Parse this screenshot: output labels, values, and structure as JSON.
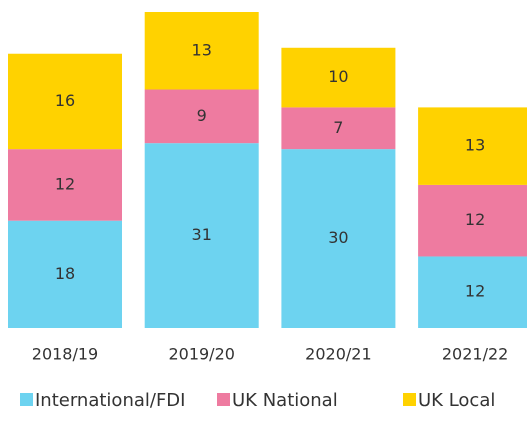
{
  "chart_data": {
    "type": "stacked_bar",
    "categories": [
      "2018/19",
      "2019/20",
      "2020/21",
      "2021/22"
    ],
    "series": [
      {
        "name": "International/FDI",
        "color": "#6dd3f0",
        "values": [
          18,
          31,
          30,
          12
        ]
      },
      {
        "name": "UK National",
        "color": "#ee7ba0",
        "values": [
          12,
          9,
          7,
          12
        ]
      },
      {
        "name": "UK Local",
        "color": "#ffd200",
        "values": [
          16,
          13,
          10,
          13
        ]
      }
    ]
  }
}
